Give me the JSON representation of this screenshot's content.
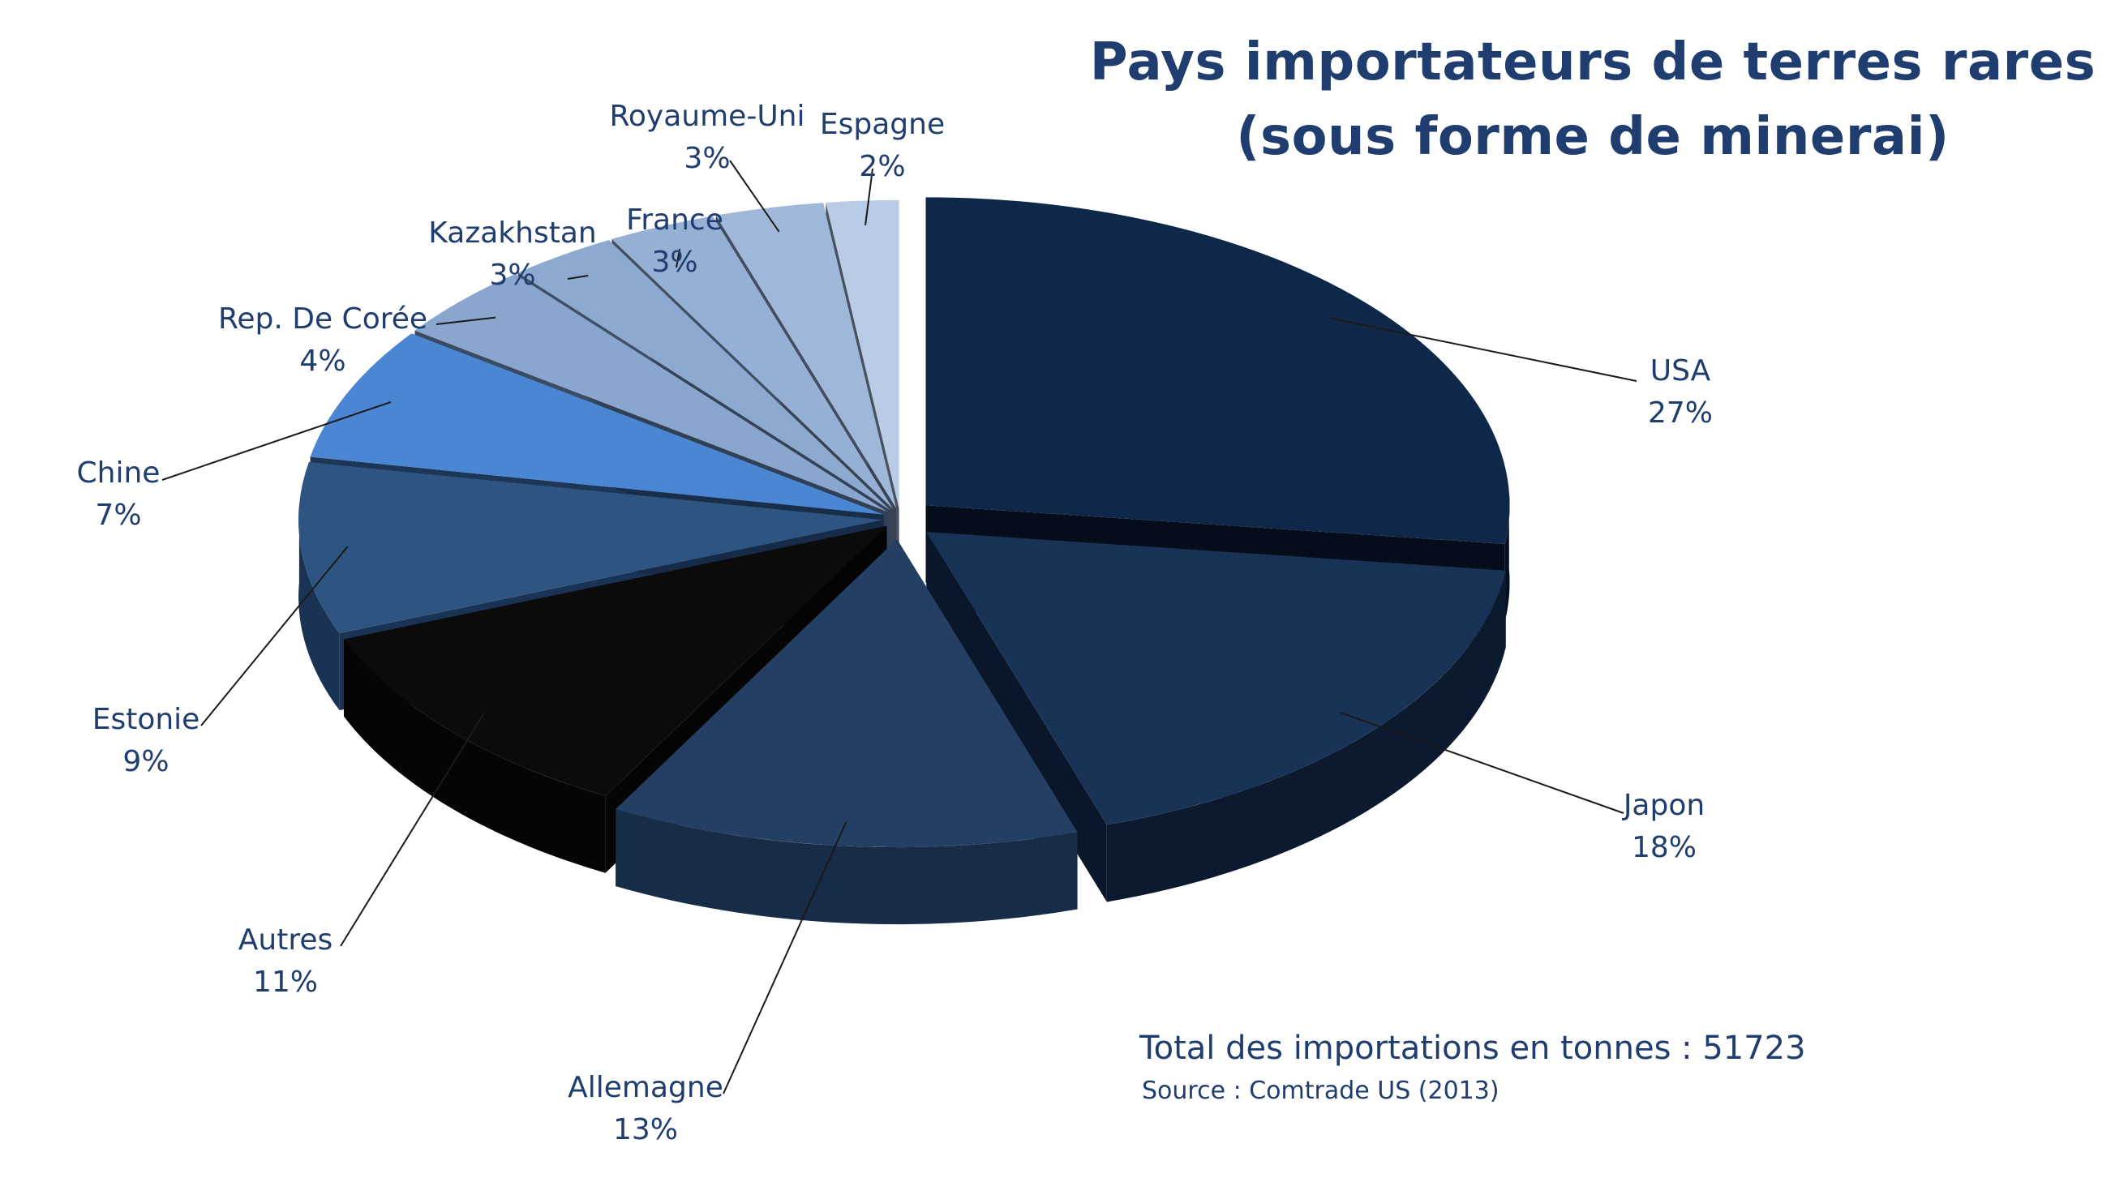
{
  "chart_data": {
    "type": "pie",
    "title_line1": "Pays importateurs de terres rares",
    "title_line2": "(sous forme de minerai)",
    "slices": [
      {
        "label": "USA",
        "value": 27,
        "pct_label": "27%",
        "top_color": "#0f2748",
        "side_color": "#070f1f"
      },
      {
        "label": "Japon",
        "value": 18,
        "pct_label": "18%",
        "top_color": "#193357",
        "side_color": "#0c1a30"
      },
      {
        "label": "Allemagne",
        "value": 13,
        "pct_label": "13%",
        "top_color": "#243f63",
        "side_color": "#172c47"
      },
      {
        "label": "Autres",
        "value": 11,
        "pct_label": "11%",
        "top_color": "#0b0b0b",
        "side_color": "#050505"
      },
      {
        "label": "Estonie",
        "value": 9,
        "pct_label": "9%",
        "top_color": "#2e5582",
        "side_color": "#1a3253"
      },
      {
        "label": "Chine",
        "value": 7,
        "pct_label": "7%",
        "top_color": "#4a86d2",
        "side_color": "#1d3556"
      },
      {
        "label": "Rep. De Corée",
        "value": 4,
        "pct_label": "4%",
        "top_color": "#8aa6cf",
        "side_color": "#3a4b63"
      },
      {
        "label": "Kazakhstan",
        "value": 3,
        "pct_label": "3%",
        "top_color": "#8ea9d0",
        "side_color": "#3e4f66"
      },
      {
        "label": "France",
        "value": 3,
        "pct_label": "3%",
        "top_color": "#96afd4",
        "side_color": "#404f63"
      },
      {
        "label": "Royaume-Uni",
        "value": 3,
        "pct_label": "3%",
        "top_color": "#9fb7d9",
        "side_color": "#414e60"
      },
      {
        "label": "Espagne",
        "value": 2,
        "pct_label": "2%",
        "top_color": "#b9cbe5",
        "side_color": "#47525f"
      }
    ],
    "legend": "none",
    "total_note": "Total des importations en tonnes : 51723",
    "source_note": "Source : Comtrade US (2013)"
  },
  "colors": {
    "text": "#1f3d6e",
    "leader_line": "#1a1a1a"
  }
}
